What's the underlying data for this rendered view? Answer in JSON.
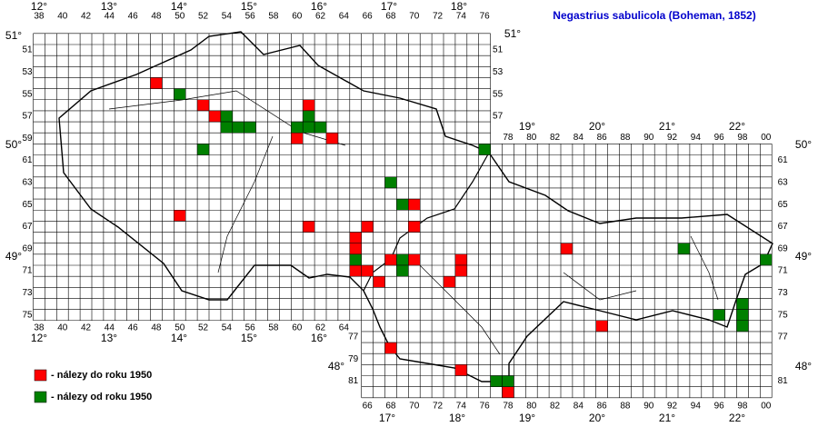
{
  "title": "Negastrius sabulicola (Boheman, 1852)",
  "grid_labels": {
    "top": [
      "38",
      "40",
      "42",
      "44",
      "46",
      "48",
      "50",
      "52",
      "54",
      "56",
      "58",
      "60",
      "62",
      "64",
      "66",
      "68",
      "70",
      "72",
      "74",
      "76"
    ],
    "top_right": [
      "78",
      "80",
      "82",
      "84",
      "86",
      "88",
      "90",
      "92",
      "94",
      "96",
      "98",
      "00"
    ],
    "bottom_left": [
      "38",
      "40",
      "42",
      "44",
      "46",
      "48",
      "50",
      "52",
      "54",
      "56",
      "58",
      "60",
      "62",
      "64"
    ],
    "bottom_right": [
      "66",
      "68",
      "70",
      "72",
      "74",
      "76",
      "78",
      "80",
      "82",
      "84",
      "86",
      "88",
      "90",
      "92",
      "94",
      "96",
      "98",
      "00"
    ],
    "left": [
      "51",
      "53",
      "55",
      "57",
      "59",
      "61",
      "63",
      "65",
      "67",
      "69",
      "71",
      "73",
      "75"
    ],
    "left_lower": [
      "77",
      "79",
      "81"
    ],
    "right_upper": [
      "51",
      "53",
      "55",
      "57"
    ],
    "right_lower": [
      "61",
      "63",
      "65",
      "67",
      "69",
      "71",
      "73",
      "75",
      "77"
    ],
    "right_bottom": [
      "81"
    ]
  },
  "degrees": {
    "top": [
      "12°",
      "13°",
      "14°",
      "15°",
      "16°",
      "17°",
      "18°"
    ],
    "top_right": [
      "19°",
      "20°",
      "21°",
      "22°"
    ],
    "bottom_left": [
      "12°",
      "13°",
      "14°",
      "15°",
      "16°"
    ],
    "bottom_right": [
      "17°",
      "18°",
      "19°",
      "20°",
      "21°",
      "22°"
    ],
    "left": [
      "51°",
      "50°",
      "49°"
    ],
    "left_lower": [
      "48°"
    ],
    "right_upper": [
      "51°"
    ],
    "right": [
      "50°",
      "49°",
      "48°"
    ]
  },
  "records": [
    {
      "name": "- nálezy do roku 1950",
      "color": "#ff0000",
      "cells": [
        [
          48,
          54
        ],
        [
          52,
          56
        ],
        [
          53,
          57
        ],
        [
          60,
          59
        ],
        [
          61,
          56
        ],
        [
          63,
          59
        ],
        [
          70,
          65
        ],
        [
          70,
          67
        ],
        [
          50,
          66
        ],
        [
          61,
          67
        ],
        [
          66,
          67
        ],
        [
          65,
          68
        ],
        [
          65,
          69
        ],
        [
          65,
          71
        ],
        [
          66,
          71
        ],
        [
          67,
          72
        ],
        [
          68,
          70
        ],
        [
          70,
          70
        ],
        [
          74,
          70
        ],
        [
          74,
          71
        ],
        [
          73,
          72
        ],
        [
          83,
          69
        ],
        [
          86,
          76
        ],
        [
          68,
          78
        ],
        [
          74,
          80
        ],
        [
          78,
          82
        ]
      ]
    },
    {
      "name": "- nálezy od roku 1950",
      "color": "#008000",
      "cells": [
        [
          50,
          55
        ],
        [
          54,
          57
        ],
        [
          54,
          58
        ],
        [
          55,
          58
        ],
        [
          56,
          58
        ],
        [
          52,
          60
        ],
        [
          60,
          58
        ],
        [
          61,
          57
        ],
        [
          61,
          58
        ],
        [
          62,
          58
        ],
        [
          76,
          60
        ],
        [
          68,
          63
        ],
        [
          69,
          65
        ],
        [
          65,
          70
        ],
        [
          69,
          70
        ],
        [
          69,
          71
        ],
        [
          93,
          69
        ],
        [
          100,
          70
        ],
        [
          98,
          74
        ],
        [
          98,
          75
        ],
        [
          98,
          76
        ],
        [
          96,
          75
        ],
        [
          77,
          81
        ],
        [
          78,
          81
        ]
      ]
    }
  ]
}
